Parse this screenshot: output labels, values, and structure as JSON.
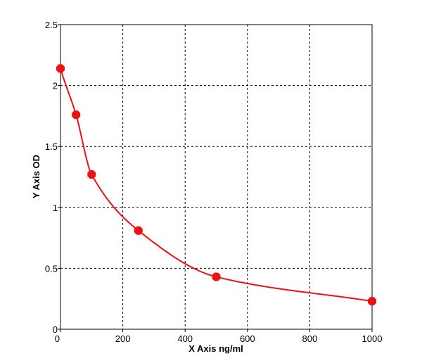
{
  "chart_data": {
    "type": "scatter",
    "title": "",
    "xlabel": "X Axis ng/ml",
    "ylabel": "Y Axis OD",
    "xlim": [
      0,
      1000
    ],
    "ylim": [
      0,
      2.5
    ],
    "x_ticks": [
      "0",
      "200",
      "400",
      "600",
      "800",
      "1000"
    ],
    "y_ticks": [
      "0",
      "0.5",
      "1",
      "1.5",
      "2",
      "2.5"
    ],
    "grid": true,
    "series": [
      {
        "x": [
          0,
          50,
          100,
          250,
          500,
          1000
        ],
        "y": [
          2.14,
          1.76,
          1.27,
          0.81,
          0.43,
          0.23
        ]
      }
    ],
    "fit_curve": true,
    "color": "#ee1111"
  }
}
